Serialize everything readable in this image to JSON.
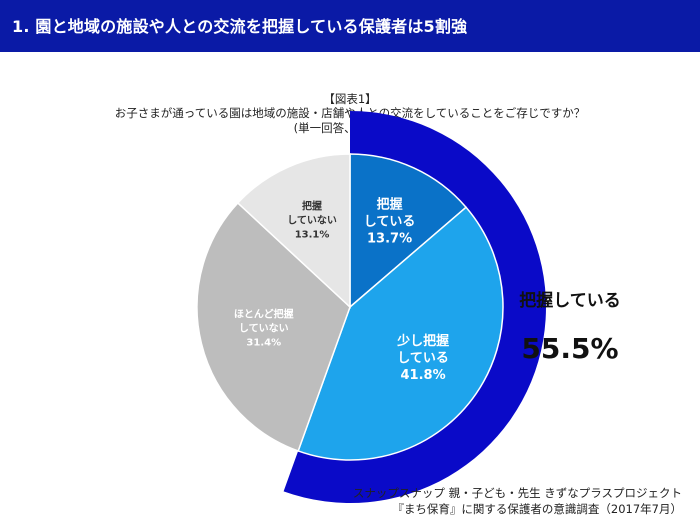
{
  "header": {
    "title": "1.  園と地域の施設や人との交流を把握している保護者は5割強",
    "background": "#0a1aa6"
  },
  "chart_data": {
    "type": "pie",
    "figure_label": "【図表1】",
    "title": "お子さまが通っている園は地域の施設・店舗や人との交流をしていることをご存じですか？",
    "subtitle": "(単一回答、n=3000)",
    "slices": [
      {
        "label_lines": [
          "把握",
          "している"
        ],
        "value": 13.7,
        "value_label": "13.7%",
        "color": "#0a72c8",
        "text_color": "#ffffff"
      },
      {
        "label_lines": [
          "少し把握",
          "している"
        ],
        "value": 41.8,
        "value_label": "41.8%",
        "color": "#1ea4ec",
        "text_color": "#ffffff"
      },
      {
        "label_lines": [
          "ほとんど把握",
          "していない"
        ],
        "value": 31.4,
        "value_label": "31.4%",
        "color": "#bdbdbd",
        "text_color": "#ffffff"
      },
      {
        "label_lines": [
          "把握",
          "していない"
        ],
        "value": 13.1,
        "value_label": "13.1%",
        "color": "#e6e6e6",
        "text_color": "#333333"
      }
    ],
    "highlight": {
      "label": "把握している",
      "value": 55.5,
      "value_label": "55.5%",
      "color": "#0a0ac8",
      "covers_slices": [
        0,
        1
      ]
    }
  },
  "source": {
    "line1": "スナップスナップ 親・子ども・先生 きずなプラスプロジェクト",
    "line2": "『まち保育』に関する保護者の意識調査（2017年7月）"
  }
}
